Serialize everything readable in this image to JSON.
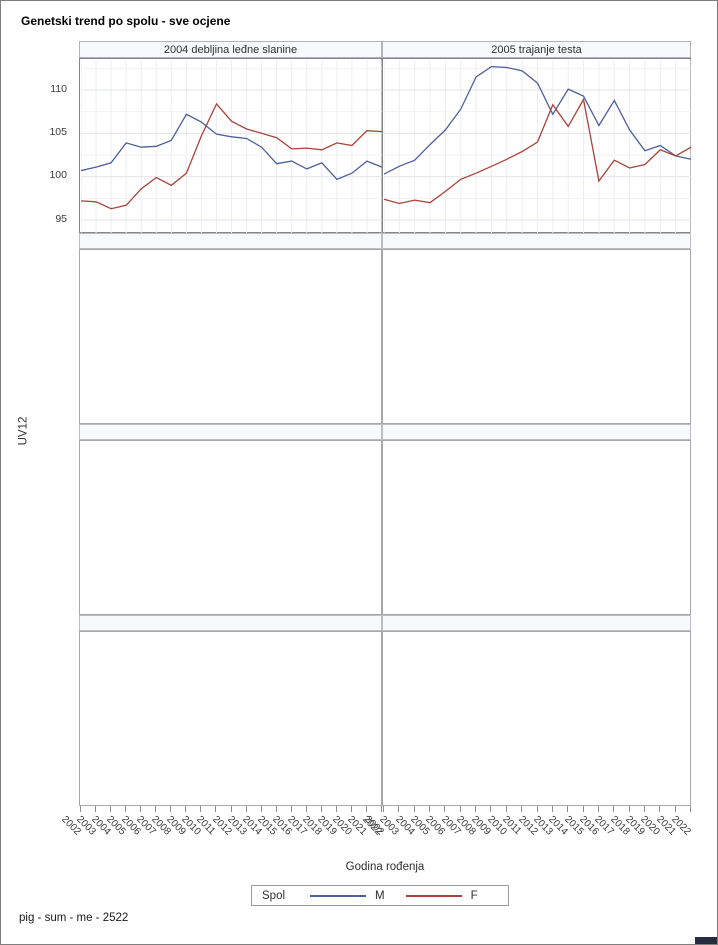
{
  "title": "Genetski trend po spolu - sve ocjene",
  "footer_note": "pig - sum - me - 2522",
  "y_axis": {
    "label": "UV12",
    "tick_labels": [
      110,
      105,
      100,
      95
    ]
  },
  "x_axis": {
    "label": "Godina rođenja",
    "years": [
      "2002",
      "2003",
      "2004",
      "2005",
      "2006",
      "2007",
      "2008",
      "2009",
      "2010",
      "2011",
      "2012",
      "2013",
      "2014",
      "2015",
      "2016",
      "2017",
      "2018",
      "2019",
      "2020",
      "2021",
      "2022"
    ]
  },
  "legend": {
    "title": "Spol",
    "entries": [
      {
        "label": "M",
        "color": "#4d5f9d"
      },
      {
        "label": "F",
        "color": "#aa4338"
      }
    ]
  },
  "colors": {
    "male_line": "#4d5f9d",
    "female_line": "#aa4338",
    "band_background": "#f8f9fc",
    "grid_major": "#e3e5ec",
    "grid_minor": "#f1f2f7",
    "grid_vertical": "#eceef3"
  },
  "chart_data": [
    {
      "type": "line",
      "panel_title": "2004 debljina leđne slanine",
      "xlabel": "Godina rođenja",
      "ylabel": "UV12",
      "x": [
        2002,
        2003,
        2004,
        2005,
        2006,
        2007,
        2008,
        2009,
        2010,
        2011,
        2012,
        2013,
        2014,
        2015,
        2016,
        2017,
        2018,
        2019,
        2020,
        2021,
        2022
      ],
      "ylim": [
        93.5,
        113.5
      ],
      "yticks": [
        95,
        100,
        105,
        110
      ],
      "grid": true,
      "series": [
        {
          "name": "M",
          "color": "#4d5f9d",
          "values": [
            100.7,
            101.1,
            101.6,
            103.9,
            103.4,
            103.5,
            104.2,
            107.2,
            106.3,
            104.9,
            104.6,
            104.4,
            103.4,
            101.5,
            101.8,
            100.9,
            101.6,
            99.7,
            100.4,
            101.8,
            101.1
          ]
        },
        {
          "name": "F",
          "color": "#aa4338",
          "values": [
            97.2,
            97.1,
            96.3,
            96.7,
            98.6,
            99.9,
            99.0,
            100.4,
            104.7,
            108.4,
            106.4,
            105.5,
            105.0,
            104.5,
            103.2,
            103.3,
            103.1,
            103.9,
            103.6,
            105.3,
            105.2
          ]
        }
      ]
    },
    {
      "type": "line",
      "panel_title": "2005 trajanje testa",
      "xlabel": "Godina rođenja",
      "ylabel": "UV12",
      "x": [
        2002,
        2003,
        2004,
        2005,
        2006,
        2007,
        2008,
        2009,
        2010,
        2011,
        2012,
        2013,
        2014,
        2015,
        2016,
        2017,
        2018,
        2019,
        2020,
        2021,
        2022
      ],
      "ylim": [
        93.5,
        113.5
      ],
      "yticks": [
        95,
        100,
        105,
        110
      ],
      "grid": true,
      "series": [
        {
          "name": "M",
          "color": "#4d5f9d",
          "values": [
            100.3,
            101.2,
            101.9,
            103.7,
            105.4,
            107.8,
            111.5,
            112.7,
            112.6,
            112.2,
            110.8,
            107.2,
            110.1,
            109.3,
            105.9,
            108.8,
            105.4,
            103.0,
            103.6,
            102.4,
            102.0
          ]
        },
        {
          "name": "F",
          "color": "#aa4338",
          "values": [
            97.4,
            96.9,
            97.3,
            97.0,
            98.3,
            99.7,
            100.4,
            101.2,
            102.0,
            102.9,
            104.0,
            108.3,
            105.8,
            108.9,
            99.5,
            101.9,
            101.0,
            101.4,
            103.1,
            102.4,
            103.4
          ]
        }
      ]
    }
  ],
  "empty_panel_rows": 3
}
